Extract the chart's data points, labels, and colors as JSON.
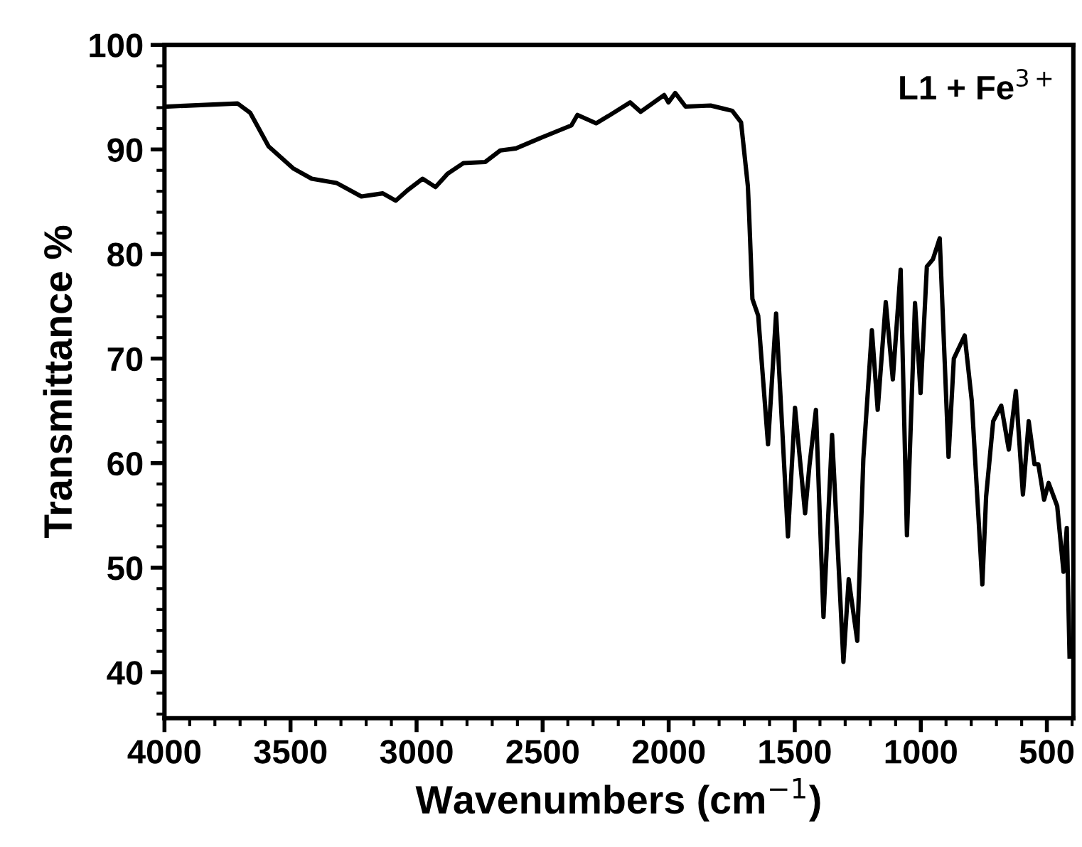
{
  "chart_data": {
    "type": "line",
    "xlabel": "Wavenumbers (cm$^{−1}$)",
    "ylabel": "Transmittance %",
    "annotations": [
      "L1 + Fe$^{3+}$"
    ],
    "xlim": [
      4000,
      395
    ],
    "xticks": [
      4000,
      3500,
      3000,
      2500,
      2000,
      1500,
      1000,
      500
    ],
    "ylim": [
      35.6,
      100
    ],
    "yticks": [
      40,
      50,
      60,
      70,
      80,
      90,
      100
    ],
    "grid": false,
    "legend": false,
    "marker": "none",
    "line_style": "solid",
    "series": [
      {
        "color": "#000000",
        "x": [
          3992,
          3710,
          3660,
          3587,
          3490,
          3416,
          3318,
          3219,
          3134,
          3083,
          3036,
          2976,
          2925,
          2876,
          2814,
          2728,
          2668,
          2606,
          2508,
          2386,
          2362,
          2288,
          2239,
          2153,
          2111,
          2018,
          2001,
          1974,
          1933,
          1834,
          1748,
          1713,
          1686,
          1681,
          1668,
          1645,
          1606,
          1574,
          1527,
          1499,
          1459,
          1442,
          1416,
          1386,
          1352,
          1307,
          1286,
          1252,
          1228,
          1194,
          1171,
          1139,
          1111,
          1080,
          1055,
          1023,
          1001,
          976,
          952,
          925,
          890,
          869,
          826,
          798,
          756,
          741,
          713,
          681,
          651,
          623,
          595,
          572,
          549,
          534,
          511,
          493,
          459,
          434,
          421,
          410
        ],
        "values": [
          94.1,
          94.4,
          93.5,
          90.3,
          88.2,
          87.2,
          86.8,
          85.5,
          85.8,
          85.1,
          86.1,
          87.2,
          86.4,
          87.7,
          88.7,
          88.8,
          89.9,
          90.1,
          91.1,
          92.3,
          93.3,
          92.5,
          93.2,
          94.5,
          93.6,
          95.2,
          94.5,
          95.4,
          94.1,
          94.2,
          93.7,
          92.6,
          86.5,
          83.8,
          75.7,
          74.1,
          61.8,
          74.3,
          53.0,
          65.3,
          55.2,
          59.7,
          65.1,
          45.3,
          62.7,
          41.0,
          48.9,
          43.0,
          60.4,
          72.7,
          65.1,
          75.4,
          68.0,
          78.5,
          53.1,
          75.3,
          66.7,
          78.8,
          79.5,
          81.5,
          60.6,
          70.0,
          72.2,
          66.0,
          48.4,
          56.8,
          64.0,
          65.5,
          61.3,
          66.9,
          57.0,
          64.0,
          59.9,
          59.9,
          56.5,
          58.1,
          55.9,
          49.6,
          53.8,
          41.5
        ]
      }
    ]
  }
}
